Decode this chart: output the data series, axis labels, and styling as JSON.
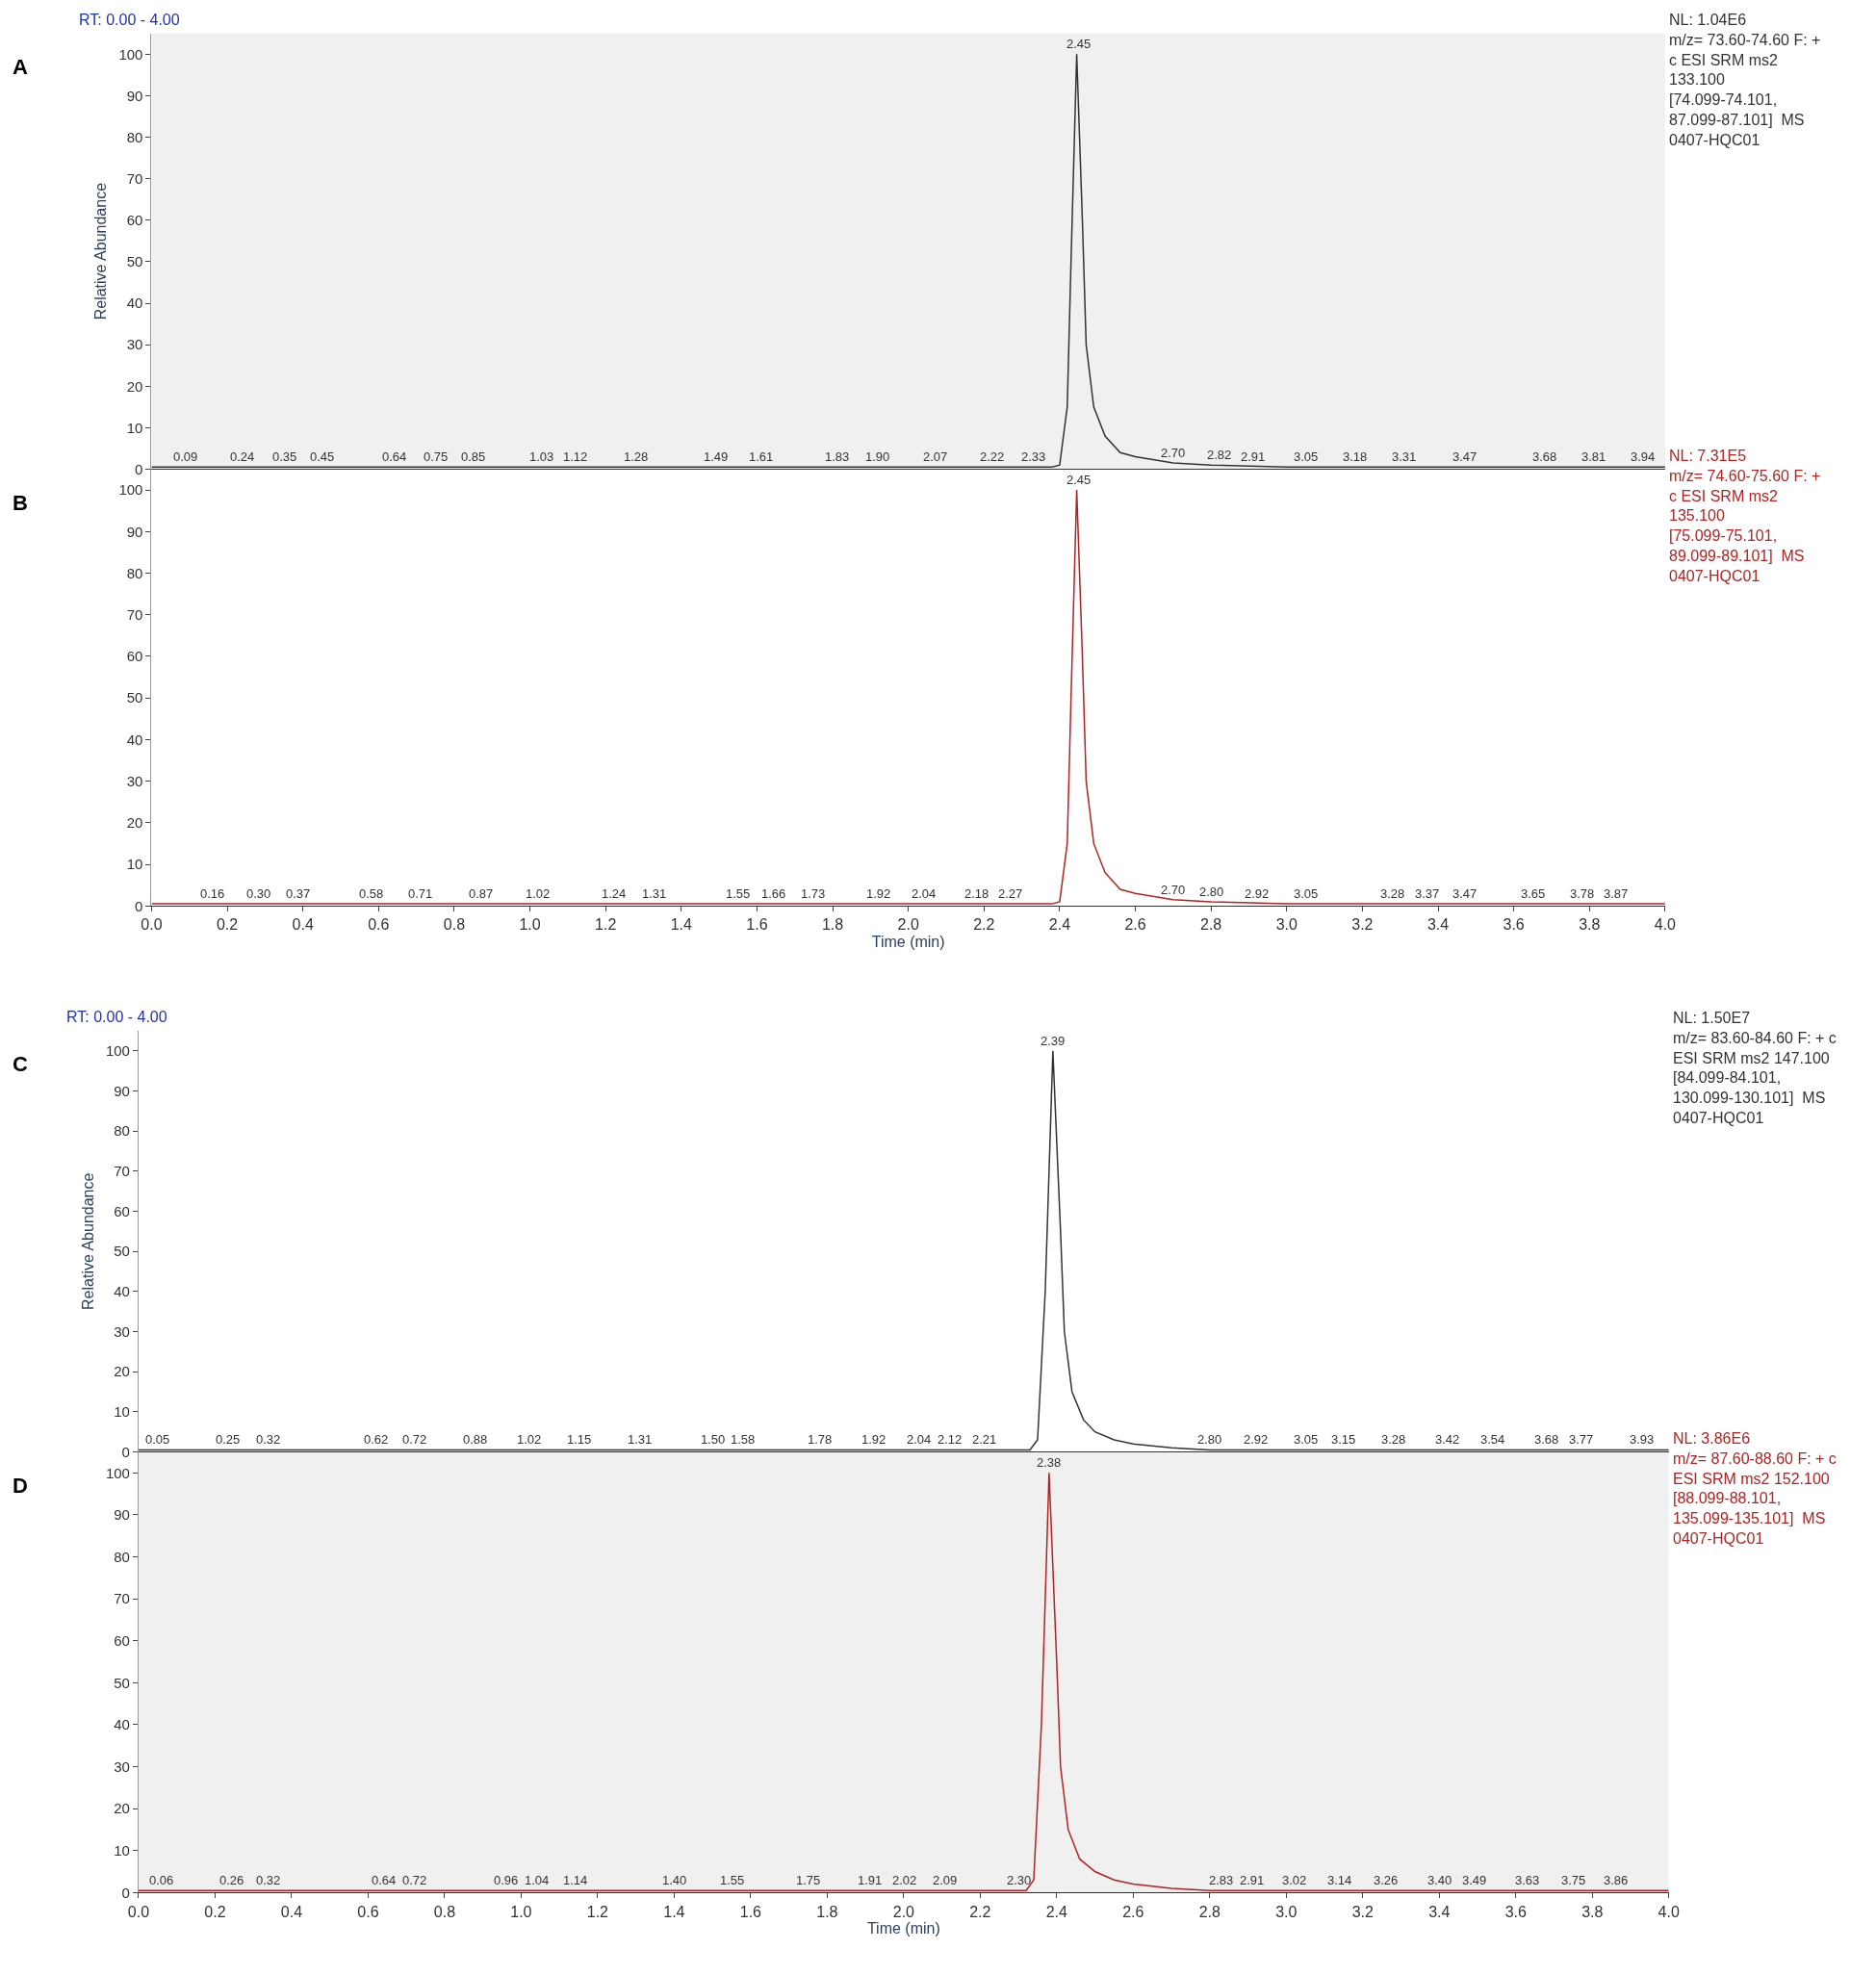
{
  "chart_data": [
    {
      "type": "line",
      "ylabel": "Relative Abundance",
      "xlim": [
        0,
        4
      ],
      "ylim": [
        0,
        105
      ],
      "tick_labels": "y",
      "marker": "none",
      "line_style": "solid",
      "grid": false,
      "yticks": [
        0,
        10,
        20,
        30,
        40,
        50,
        60,
        70,
        80,
        90,
        100
      ],
      "x": [
        0,
        0.5,
        1.0,
        1.5,
        2.0,
        2.38,
        2.4,
        2.42,
        2.43,
        2.445,
        2.46,
        2.47,
        2.49,
        2.52,
        2.56,
        2.6,
        2.7,
        2.8,
        3.0,
        3.5,
        4.0
      ],
      "series": [
        {
          "color": "#333333",
          "values": [
            0.5,
            0.5,
            0.5,
            0.5,
            0.5,
            0.5,
            1,
            15,
            50,
            100,
            60,
            30,
            15,
            8,
            4,
            3,
            1.5,
            1,
            0.5,
            0.5,
            0.5
          ]
        }
      ],
      "annotations": [
        "A",
        "RT: 0.00 - 4.00",
        "NL: 1.04E6\nm/z= 73.60-74.60 F: +\nc ESI SRM ms2\n133.100\n[74.099-74.101,\n87.099-87.101]  MS\n0407-HQC01",
        {
          "text": "0.09",
          "x": 0.09,
          "y": 0.5
        },
        {
          "text": "0.24",
          "x": 0.24,
          "y": 0.5
        },
        {
          "text": "0.35",
          "x": 0.35,
          "y": 0.5
        },
        {
          "text": "0.45",
          "x": 0.45,
          "y": 0.5
        },
        {
          "text": "0.64",
          "x": 0.64,
          "y": 0.5
        },
        {
          "text": "0.75",
          "x": 0.75,
          "y": 0.5
        },
        {
          "text": "0.85",
          "x": 0.85,
          "y": 0.5
        },
        {
          "text": "1.03",
          "x": 1.03,
          "y": 0.5
        },
        {
          "text": "1.12",
          "x": 1.12,
          "y": 0.5
        },
        {
          "text": "1.28",
          "x": 1.28,
          "y": 0.5
        },
        {
          "text": "1.49",
          "x": 1.49,
          "y": 0.5
        },
        {
          "text": "1.61",
          "x": 1.61,
          "y": 0.5
        },
        {
          "text": "1.83",
          "x": 1.83,
          "y": 0.5
        },
        {
          "text": "1.90",
          "x": 1.9,
          "y": 0.5
        },
        {
          "text": "2.07",
          "x": 2.07,
          "y": 0.5
        },
        {
          "text": "2.22",
          "x": 2.22,
          "y": 0.5
        },
        {
          "text": "2.33",
          "x": 2.33,
          "y": 0.5
        },
        {
          "text": "2.45",
          "x": 2.45,
          "y": 100
        },
        {
          "text": "2.70",
          "x": 2.7,
          "y": 1.5
        },
        {
          "text": "2.82",
          "x": 2.82,
          "y": 1
        },
        {
          "text": "2.91",
          "x": 2.91,
          "y": 0.5
        },
        {
          "text": "3.05",
          "x": 3.05,
          "y": 0.5
        },
        {
          "text": "3.18",
          "x": 3.18,
          "y": 0.5
        },
        {
          "text": "3.31",
          "x": 3.31,
          "y": 0.5
        },
        {
          "text": "3.47",
          "x": 3.47,
          "y": 0.5
        },
        {
          "text": "3.68",
          "x": 3.68,
          "y": 0.5
        },
        {
          "text": "3.81",
          "x": 3.81,
          "y": 0.5
        },
        {
          "text": "3.94",
          "x": 3.94,
          "y": 0.5
        }
      ]
    },
    {
      "type": "line",
      "xlabel": "Time (min)",
      "xlim": [
        0,
        4
      ],
      "ylim": [
        0,
        105
      ],
      "marker": "none",
      "line_style": "solid",
      "grid": false,
      "xticks": [
        {
          "value": 0,
          "label": "0.0"
        },
        {
          "value": 0.2,
          "label": "0.2"
        },
        {
          "value": 0.4,
          "label": "0.4"
        },
        {
          "value": 0.6,
          "label": "0.6"
        },
        {
          "value": 0.8,
          "label": "0.8"
        },
        {
          "value": 1.0,
          "label": "1.0"
        },
        {
          "value": 1.2,
          "label": "1.2"
        },
        {
          "value": 1.4,
          "label": "1.4"
        },
        {
          "value": 1.6,
          "label": "1.6"
        },
        {
          "value": 1.8,
          "label": "1.8"
        },
        {
          "value": 2.0,
          "label": "2.0"
        },
        {
          "value": 2.2,
          "label": "2.2"
        },
        {
          "value": 2.4,
          "label": "2.4"
        },
        {
          "value": 2.6,
          "label": "2.6"
        },
        {
          "value": 2.8,
          "label": "2.8"
        },
        {
          "value": 3.0,
          "label": "3.0"
        },
        {
          "value": 3.2,
          "label": "3.2"
        },
        {
          "value": 3.4,
          "label": "3.4"
        },
        {
          "value": 3.6,
          "label": "3.6"
        },
        {
          "value": 3.8,
          "label": "3.8"
        },
        {
          "value": 4.0,
          "label": "4.0"
        }
      ],
      "yticks": [
        0,
        10,
        20,
        30,
        40,
        50,
        60,
        70,
        80,
        90,
        100
      ],
      "x": [
        0,
        0.5,
        1.0,
        1.5,
        2.0,
        2.38,
        2.4,
        2.42,
        2.43,
        2.445,
        2.46,
        2.47,
        2.49,
        2.52,
        2.56,
        2.6,
        2.7,
        2.8,
        3.0,
        3.5,
        4.0
      ],
      "series": [
        {
          "color": "#b22222",
          "values": [
            0.5,
            0.5,
            0.5,
            0.5,
            0.5,
            0.5,
            1,
            15,
            50,
            100,
            60,
            30,
            15,
            8,
            4,
            3,
            1.5,
            1,
            0.5,
            0.5,
            0.5
          ]
        }
      ],
      "annotations": [
        "B",
        "NL: 7.31E5\nm/z= 74.60-75.60 F: +\nc ESI SRM ms2\n135.100\n[75.099-75.101,\n89.099-89.101]  MS\n0407-HQC01",
        {
          "text": "0.16",
          "x": 0.16,
          "y": 0.5
        },
        {
          "text": "0.30",
          "x": 0.3,
          "y": 0.5
        },
        {
          "text": "0.37",
          "x": 0.37,
          "y": 0.5
        },
        {
          "text": "0.58",
          "x": 0.58,
          "y": 0.5
        },
        {
          "text": "0.71",
          "x": 0.71,
          "y": 0.5
        },
        {
          "text": "0.87",
          "x": 0.87,
          "y": 0.5
        },
        {
          "text": "1.02",
          "x": 1.02,
          "y": 0.5
        },
        {
          "text": "1.24",
          "x": 1.24,
          "y": 0.5
        },
        {
          "text": "1.31",
          "x": 1.31,
          "y": 0.5
        },
        {
          "text": "1.55",
          "x": 1.55,
          "y": 0.5
        },
        {
          "text": "1.66",
          "x": 1.66,
          "y": 0.5
        },
        {
          "text": "1.73",
          "x": 1.73,
          "y": 0.5
        },
        {
          "text": "1.92",
          "x": 1.92,
          "y": 0.5
        },
        {
          "text": "2.04",
          "x": 2.04,
          "y": 0.5
        },
        {
          "text": "2.18",
          "x": 2.18,
          "y": 0.5
        },
        {
          "text": "2.27",
          "x": 2.27,
          "y": 0.5
        },
        {
          "text": "2.45",
          "x": 2.45,
          "y": 100
        },
        {
          "text": "2.70",
          "x": 2.7,
          "y": 1.5
        },
        {
          "text": "2.80",
          "x": 2.8,
          "y": 1
        },
        {
          "text": "2.92",
          "x": 2.92,
          "y": 0.5
        },
        {
          "text": "3.05",
          "x": 3.05,
          "y": 0.5
        },
        {
          "text": "3.28",
          "x": 3.28,
          "y": 0.5
        },
        {
          "text": "3.37",
          "x": 3.37,
          "y": 0.5
        },
        {
          "text": "3.47",
          "x": 3.47,
          "y": 0.5
        },
        {
          "text": "3.65",
          "x": 3.65,
          "y": 0.5
        },
        {
          "text": "3.78",
          "x": 3.78,
          "y": 0.5
        },
        {
          "text": "3.87",
          "x": 3.87,
          "y": 0.5
        }
      ]
    },
    {
      "type": "line",
      "ylabel": "Relative Abundance",
      "xlim": [
        0,
        4
      ],
      "ylim": [
        0,
        105
      ],
      "tick_labels": "y",
      "marker": "none",
      "line_style": "solid",
      "grid": false,
      "yticks": [
        0,
        10,
        20,
        30,
        40,
        50,
        60,
        70,
        80,
        90,
        100
      ],
      "x": [
        0,
        0.5,
        1.0,
        1.5,
        2.0,
        2.33,
        2.35,
        2.37,
        2.39,
        2.41,
        2.42,
        2.44,
        2.47,
        2.5,
        2.55,
        2.6,
        2.7,
        2.8,
        3.0,
        3.5,
        4.0
      ],
      "series": [
        {
          "color": "#333333",
          "values": [
            0.5,
            0.5,
            0.5,
            0.5,
            0.5,
            0.5,
            3,
            40,
            100,
            55,
            30,
            15,
            8,
            5,
            3,
            2,
            1,
            0.5,
            0.5,
            0.5,
            0.5
          ]
        }
      ],
      "annotations": [
        "C",
        "RT: 0.00 - 4.00",
        "NL: 1.50E7\nm/z= 83.60-84.60 F: + c\nESI SRM ms2 147.100\n[84.099-84.101,\n130.099-130.101]  MS\n0407-HQC01",
        {
          "text": "0.05",
          "x": 0.05,
          "y": 0.5
        },
        {
          "text": "0.25",
          "x": 0.25,
          "y": 0.5
        },
        {
          "text": "0.32",
          "x": 0.32,
          "y": 0.5
        },
        {
          "text": "0.62",
          "x": 0.62,
          "y": 0.5
        },
        {
          "text": "0.72",
          "x": 0.72,
          "y": 0.5
        },
        {
          "text": "0.88",
          "x": 0.88,
          "y": 0.5
        },
        {
          "text": "1.02",
          "x": 1.02,
          "y": 0.5
        },
        {
          "text": "1.15",
          "x": 1.15,
          "y": 0.5
        },
        {
          "text": "1.31",
          "x": 1.31,
          "y": 0.5
        },
        {
          "text": "1.50",
          "x": 1.5,
          "y": 0.5
        },
        {
          "text": "1.58",
          "x": 1.58,
          "y": 0.5
        },
        {
          "text": "1.78",
          "x": 1.78,
          "y": 0.5
        },
        {
          "text": "1.92",
          "x": 1.92,
          "y": 0.5
        },
        {
          "text": "2.04",
          "x": 2.04,
          "y": 0.5
        },
        {
          "text": "2.12",
          "x": 2.12,
          "y": 0.5
        },
        {
          "text": "2.21",
          "x": 2.21,
          "y": 0.5
        },
        {
          "text": "2.39",
          "x": 2.39,
          "y": 100
        },
        {
          "text": "2.80",
          "x": 2.8,
          "y": 0.5
        },
        {
          "text": "2.92",
          "x": 2.92,
          "y": 0.5
        },
        {
          "text": "3.05",
          "x": 3.05,
          "y": 0.5
        },
        {
          "text": "3.15",
          "x": 3.15,
          "y": 0.5
        },
        {
          "text": "3.28",
          "x": 3.28,
          "y": 0.5
        },
        {
          "text": "3.42",
          "x": 3.42,
          "y": 0.5
        },
        {
          "text": "3.54",
          "x": 3.54,
          "y": 0.5
        },
        {
          "text": "3.68",
          "x": 3.68,
          "y": 0.5
        },
        {
          "text": "3.77",
          "x": 3.77,
          "y": 0.5
        },
        {
          "text": "3.93",
          "x": 3.93,
          "y": 0.5
        }
      ]
    },
    {
      "type": "line",
      "xlabel": "Time (min)",
      "xlim": [
        0,
        4
      ],
      "ylim": [
        0,
        105
      ],
      "marker": "none",
      "line_style": "solid",
      "grid": false,
      "xticks": [
        {
          "value": 0,
          "label": "0.0"
        },
        {
          "value": 0.2,
          "label": "0.2"
        },
        {
          "value": 0.4,
          "label": "0.4"
        },
        {
          "value": 0.6,
          "label": "0.6"
        },
        {
          "value": 0.8,
          "label": "0.8"
        },
        {
          "value": 1.0,
          "label": "1.0"
        },
        {
          "value": 1.2,
          "label": "1.2"
        },
        {
          "value": 1.4,
          "label": "1.4"
        },
        {
          "value": 1.6,
          "label": "1.6"
        },
        {
          "value": 1.8,
          "label": "1.8"
        },
        {
          "value": 2.0,
          "label": "2.0"
        },
        {
          "value": 2.2,
          "label": "2.2"
        },
        {
          "value": 2.4,
          "label": "2.4"
        },
        {
          "value": 2.6,
          "label": "2.6"
        },
        {
          "value": 2.8,
          "label": "2.8"
        },
        {
          "value": 3.0,
          "label": "3.0"
        },
        {
          "value": 3.2,
          "label": "3.2"
        },
        {
          "value": 3.4,
          "label": "3.4"
        },
        {
          "value": 3.6,
          "label": "3.6"
        },
        {
          "value": 3.8,
          "label": "3.8"
        },
        {
          "value": 4.0,
          "label": "4.0"
        }
      ],
      "yticks": [
        0,
        10,
        20,
        30,
        40,
        50,
        60,
        70,
        80,
        90,
        100
      ],
      "x": [
        0,
        0.5,
        1.0,
        1.5,
        2.0,
        2.32,
        2.34,
        2.36,
        2.38,
        2.4,
        2.41,
        2.43,
        2.46,
        2.5,
        2.55,
        2.6,
        2.7,
        2.8,
        3.0,
        3.5,
        4.0
      ],
      "series": [
        {
          "color": "#b22222",
          "values": [
            0.5,
            0.5,
            0.5,
            0.5,
            0.5,
            0.5,
            3,
            40,
            100,
            55,
            30,
            15,
            8,
            5,
            3,
            2,
            1,
            0.5,
            0.5,
            0.5,
            0.5
          ]
        }
      ],
      "annotations": [
        "D",
        "NL: 3.86E6\nm/z= 87.60-88.60 F: + c\nESI SRM ms2 152.100\n[88.099-88.101,\n135.099-135.101]  MS\n0407-HQC01",
        {
          "text": "0.06",
          "x": 0.06,
          "y": 0.5
        },
        {
          "text": "0.26",
          "x": 0.26,
          "y": 0.5
        },
        {
          "text": "0.32",
          "x": 0.32,
          "y": 0.5
        },
        {
          "text": "0.64",
          "x": 0.64,
          "y": 0.5
        },
        {
          "text": "0.72",
          "x": 0.72,
          "y": 0.5
        },
        {
          "text": "0.96",
          "x": 0.96,
          "y": 0.5
        },
        {
          "text": "1.04",
          "x": 1.04,
          "y": 0.5
        },
        {
          "text": "1.14",
          "x": 1.14,
          "y": 0.5
        },
        {
          "text": "1.40",
          "x": 1.4,
          "y": 0.5
        },
        {
          "text": "1.55",
          "x": 1.55,
          "y": 0.5
        },
        {
          "text": "1.75",
          "x": 1.75,
          "y": 0.5
        },
        {
          "text": "1.91",
          "x": 1.91,
          "y": 0.5
        },
        {
          "text": "2.02",
          "x": 2.02,
          "y": 0.5
        },
        {
          "text": "2.09",
          "x": 2.09,
          "y": 0.5
        },
        {
          "text": "2.30",
          "x": 2.3,
          "y": 0.5
        },
        {
          "text": "2.38",
          "x": 2.38,
          "y": 100
        },
        {
          "text": "2.83",
          "x": 2.83,
          "y": 0.5
        },
        {
          "text": "2.91",
          "x": 2.91,
          "y": 0.5
        },
        {
          "text": "3.02",
          "x": 3.02,
          "y": 0.5
        },
        {
          "text": "3.14",
          "x": 3.14,
          "y": 0.5
        },
        {
          "text": "3.26",
          "x": 3.26,
          "y": 0.5
        },
        {
          "text": "3.40",
          "x": 3.4,
          "y": 0.5
        },
        {
          "text": "3.49",
          "x": 3.49,
          "y": 0.5
        },
        {
          "text": "3.63",
          "x": 3.63,
          "y": 0.5
        },
        {
          "text": "3.75",
          "x": 3.75,
          "y": 0.5
        },
        {
          "text": "3.86",
          "x": 3.86,
          "y": 0.5
        }
      ]
    }
  ]
}
